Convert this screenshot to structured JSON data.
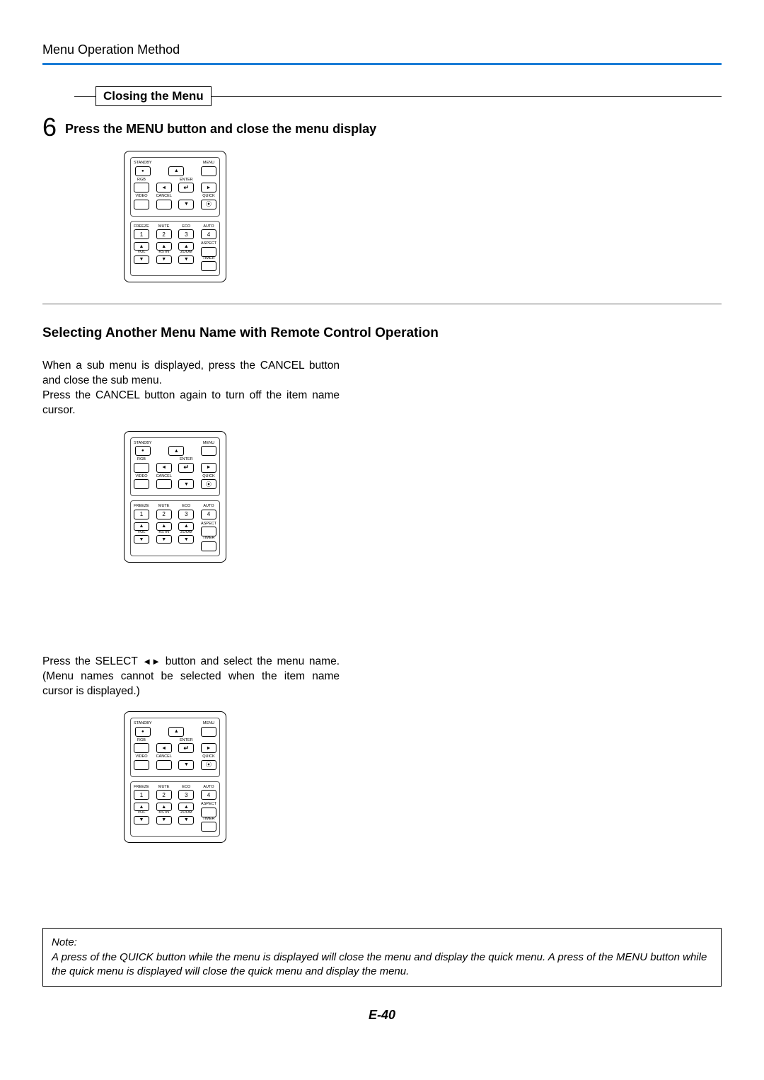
{
  "header": {
    "title": "Menu Operation Method",
    "rule_color": "#1a7cd6"
  },
  "closing_section": {
    "box_label": "Closing the Menu",
    "step_number": "6",
    "step_text": "Press the MENU button and close the menu display"
  },
  "remote": {
    "labels": {
      "standby": "STANDBY",
      "menu": "MENU",
      "rgb": "RGB",
      "enter": "ENTER",
      "video": "VIDEO",
      "cancel": "CANCEL",
      "quick": "QUICK",
      "freeze": "FREEZE",
      "mute": "MUTE",
      "eco": "ECO",
      "auto": "AUTO",
      "aspect": "ASPECT",
      "vol": "VOL",
      "kstn": "KSTN",
      "zoom": "ZOOM",
      "timer": "TIMER"
    },
    "numbers": {
      "n1": "1",
      "n2": "2",
      "n3": "3",
      "n4": "4"
    }
  },
  "section2": {
    "heading": "Selecting Another Menu Name with Remote Control Operation",
    "para1": "When a sub menu is displayed, press the CANCEL button and close the sub menu.\nPress the CANCEL button again to turn off the item name cursor.",
    "para2_pre": "Press the SELECT ",
    "para2_post": " button and select the menu name. (Menu names cannot be selected when the item name cursor is displayed.)"
  },
  "note": {
    "label": "Note:",
    "body": "A press of the QUICK button while the menu is displayed will close the menu and display the quick menu. A press of the MENU button while the quick menu is displayed will close the quick menu and display the menu."
  },
  "page_number": "E-40"
}
